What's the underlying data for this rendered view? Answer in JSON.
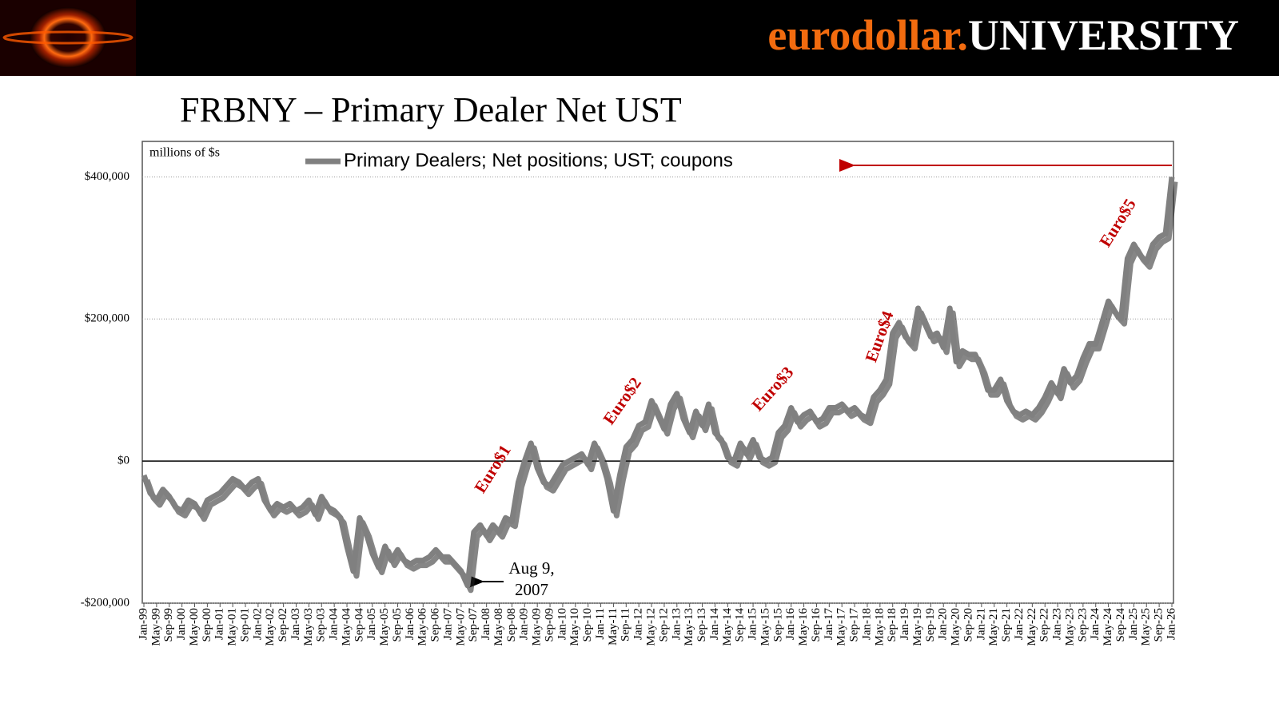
{
  "header": {
    "brand_part1": "eurodollar.",
    "brand_part2": "UNIVERSITY"
  },
  "chart_data": {
    "type": "line",
    "title": "FRBNY – Primary Dealer Net UST",
    "y_axis_label": "millions of $s",
    "categories": [
      "Jan-99",
      null,
      "May-99",
      null,
      "Sep-99",
      null,
      "Jan-00",
      null,
      "May-00",
      null,
      "Sep-00",
      null,
      "Jan-01",
      null,
      "May-01",
      null,
      "Sep-01",
      null,
      "Jan-02",
      null,
      "May-02",
      null,
      "Sep-02",
      null,
      "Jan-03",
      null,
      "May-03",
      null,
      "Sep-03",
      null,
      "Jan-04",
      null,
      "May-04",
      null,
      "Sep-04",
      null,
      "Jan-05",
      null,
      "May-05",
      null,
      "Sep-05",
      null,
      "Jan-06",
      null,
      "May-06",
      null,
      "Sep-06",
      null,
      "Jan-07",
      null,
      "May-07",
      null,
      "Sep-07",
      null,
      "Jan-08",
      null,
      "May-08",
      null,
      "Sep-08",
      null,
      "Jan-09",
      null,
      "May-09",
      null,
      "Sep-09",
      null,
      "Jan-10",
      null,
      "May-10",
      null,
      "Sep-10",
      null,
      "Jan-11",
      null,
      "May-11",
      null,
      "Sep-11",
      null,
      "Jan-12",
      null,
      "May-12",
      null,
      "Sep-12",
      null,
      "Jan-13",
      null,
      "May-13",
      null,
      "Sep-13",
      null,
      "Jan-14",
      null,
      "May-14",
      null,
      "Sep-14",
      null,
      "Jan-15",
      null,
      "May-15",
      null,
      "Sep-15",
      null,
      "Jan-16",
      null,
      "May-16",
      null,
      "Sep-16",
      null,
      "Jan-17",
      null,
      "May-17",
      null,
      "Sep-17",
      null,
      "Jan-18",
      null,
      "May-18",
      null,
      "Sep-18",
      null,
      "Jan-19",
      null,
      "May-19",
      null,
      "Sep-19",
      null,
      "Jan-20",
      null,
      "May-20",
      null,
      "Sep-20",
      null,
      "Jan-21",
      null,
      "May-21",
      null,
      "Sep-21",
      null,
      "Jan-22",
      null,
      "May-22",
      null,
      "Sep-22",
      null,
      "Jan-23",
      null,
      "May-23",
      null,
      "Sep-23",
      null,
      "Jan-24",
      null,
      "May-24",
      null,
      "Sep-24",
      null,
      "Jan-25",
      null,
      "May-25",
      null,
      "Sep-25",
      null,
      "Jan-26"
    ],
    "series": [
      {
        "name": "Primary Dealers; Net positions; UST; coupons",
        "color": "#808080",
        "values": [
          -20000,
          -45000,
          -55000,
          -40000,
          -50000,
          -65000,
          -70000,
          -55000,
          -60000,
          -75000,
          -55000,
          -50000,
          -45000,
          -35000,
          -25000,
          -30000,
          -40000,
          -30000,
          -25000,
          -55000,
          -70000,
          -60000,
          -65000,
          -60000,
          -70000,
          -65000,
          -55000,
          -75000,
          -50000,
          -65000,
          -70000,
          -80000,
          -120000,
          -155000,
          -80000,
          -100000,
          -130000,
          -150000,
          -120000,
          -140000,
          -125000,
          -140000,
          -145000,
          -140000,
          -140000,
          -135000,
          -125000,
          -135000,
          -135000,
          -145000,
          -155000,
          -175000,
          -100000,
          -90000,
          -105000,
          -90000,
          -100000,
          -80000,
          -85000,
          -30000,
          0,
          25000,
          -10000,
          -30000,
          -35000,
          -20000,
          -5000,
          0,
          5000,
          10000,
          -5000,
          25000,
          5000,
          -25000,
          -70000,
          -20000,
          20000,
          30000,
          50000,
          55000,
          85000,
          65000,
          45000,
          80000,
          95000,
          60000,
          40000,
          70000,
          50000,
          80000,
          40000,
          30000,
          5000,
          0,
          25000,
          10000,
          30000,
          5000,
          0,
          5000,
          40000,
          50000,
          75000,
          55000,
          65000,
          70000,
          55000,
          60000,
          75000,
          75000,
          80000,
          70000,
          75000,
          65000,
          60000,
          90000,
          100000,
          115000,
          180000,
          195000,
          175000,
          165000,
          215000,
          195000,
          175000,
          180000,
          160000,
          215000,
          140000,
          155000,
          150000,
          150000,
          130000,
          100000,
          100000,
          115000,
          85000,
          70000,
          65000,
          70000,
          65000,
          75000,
          90000,
          110000,
          95000,
          130000,
          110000,
          120000,
          145000,
          165000,
          165000,
          195000,
          225000,
          210000,
          200000,
          285000,
          305000,
          290000,
          280000,
          305000,
          315000,
          320000,
          400000
        ]
      }
    ],
    "ylim": [
      -200000,
      450000
    ],
    "yticks": [
      {
        "value": -200000,
        "label": "-$200,000"
      },
      {
        "value": 0,
        "label": "$0"
      },
      {
        "value": 200000,
        "label": "$200,000"
      },
      {
        "value": 400000,
        "label": "$400,000"
      }
    ],
    "grid": true,
    "legend": "top",
    "annotations": [
      "Euro$1",
      "Euro$2",
      "Euro$3",
      "Euro$4",
      "Euro$5"
    ],
    "event_note": [
      "Aug 9,",
      "2007"
    ]
  }
}
